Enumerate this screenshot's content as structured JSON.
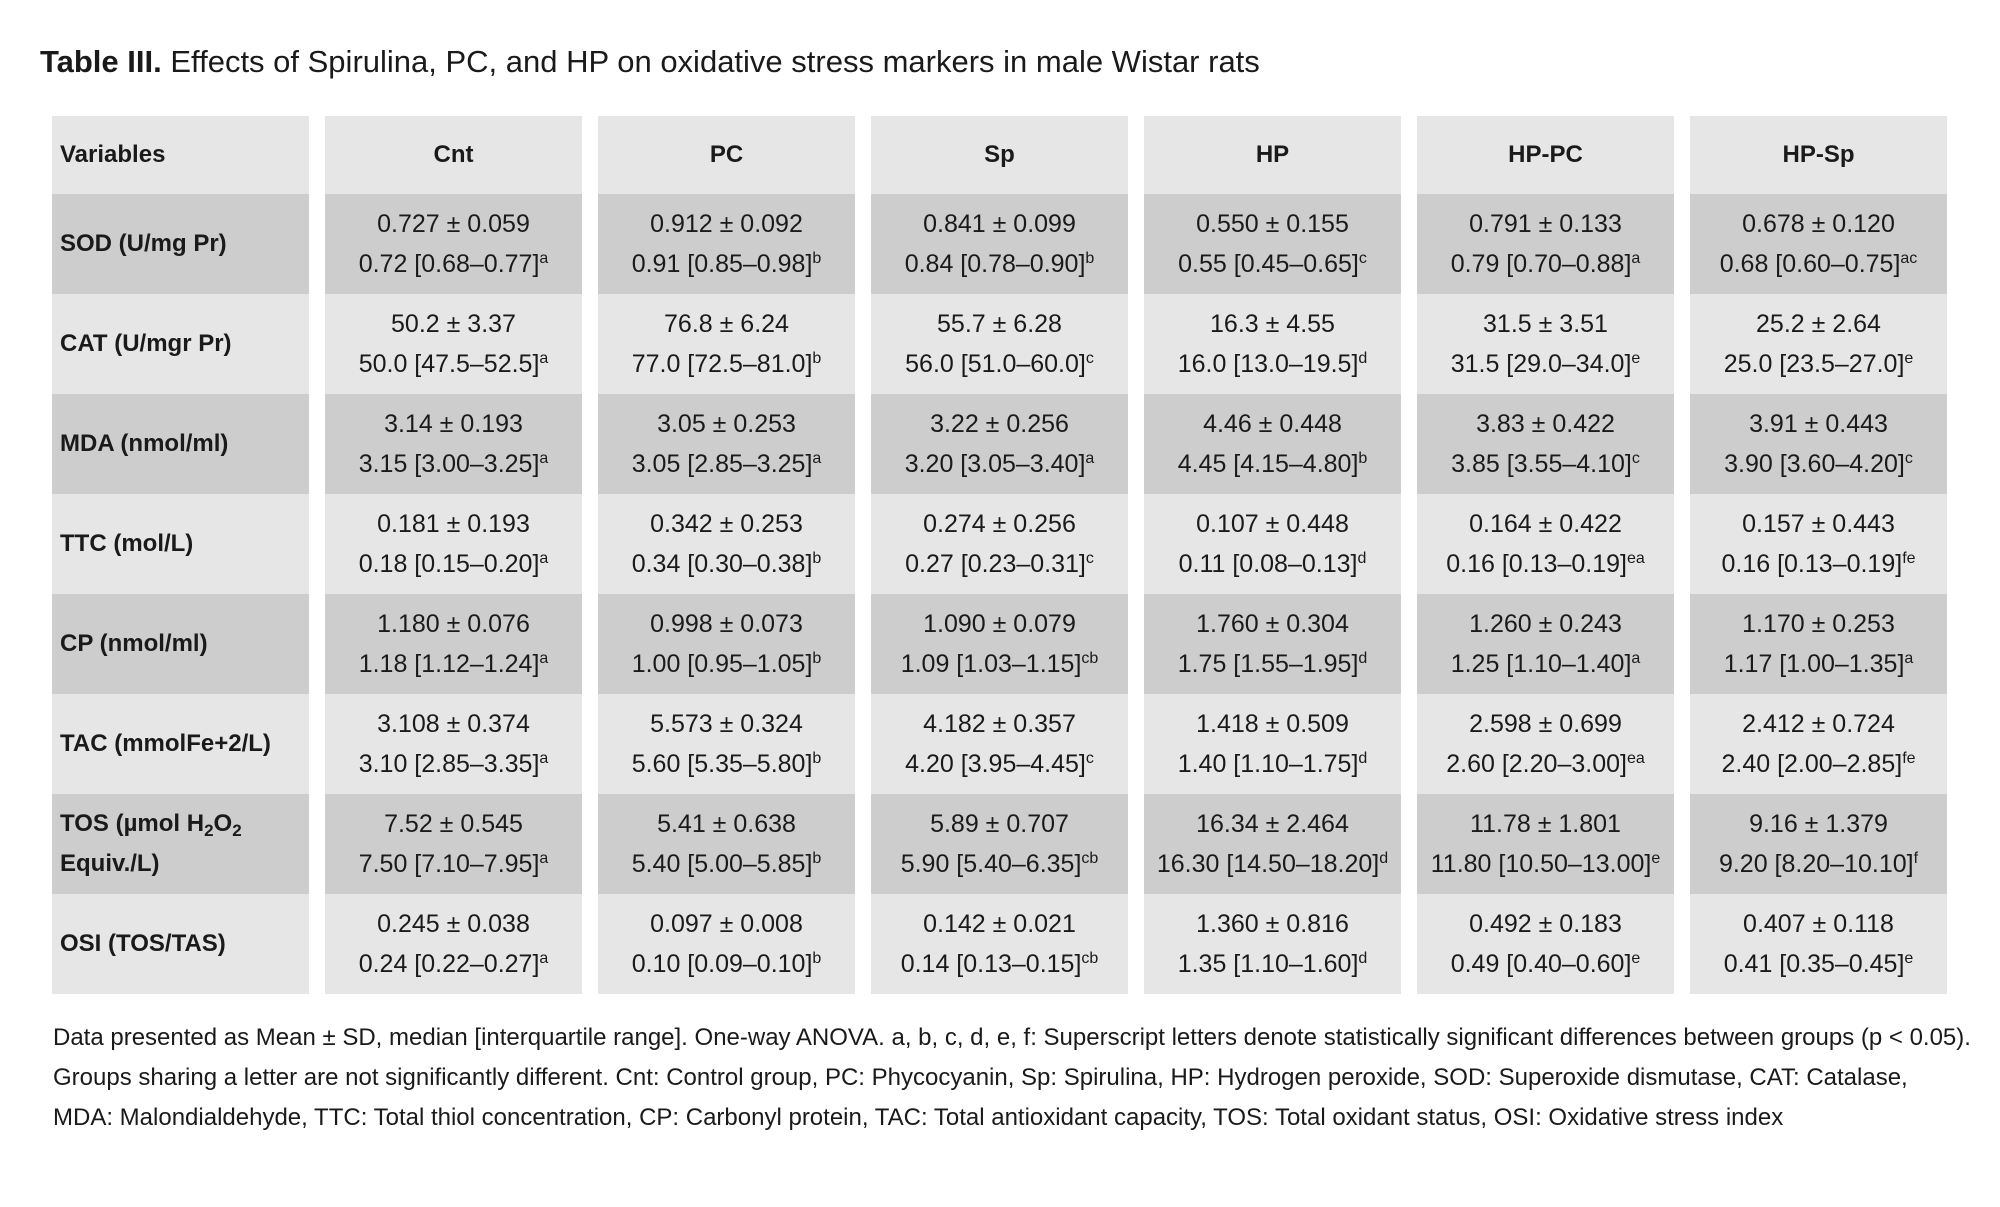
{
  "title": {
    "label": "Table III.",
    "text": "Effects of Spirulina, PC, and HP on oxidative stress markers in male Wistar rats"
  },
  "table": {
    "columns": [
      "Variables",
      "Cnt",
      "PC",
      "Sp",
      "HP",
      "HP-PC",
      "HP-Sp"
    ],
    "rows": [
      {
        "variable": {
          "line1": "SOD (U/mg Pr)"
        },
        "cells": [
          {
            "mean": "0.727 ± 0.059",
            "median": "0.72 [0.68–0.77]",
            "sup": "a"
          },
          {
            "mean": "0.912 ± 0.092",
            "median": "0.91 [0.85–0.98]",
            "sup": "b"
          },
          {
            "mean": "0.841 ± 0.099",
            "median": "0.84 [0.78–0.90]",
            "sup": "b"
          },
          {
            "mean": "0.550 ± 0.155",
            "median": "0.55 [0.45–0.65]",
            "sup": "c"
          },
          {
            "mean": "0.791 ± 0.133",
            "median": "0.79 [0.70–0.88]",
            "sup": "a"
          },
          {
            "mean": "0.678 ± 0.120",
            "median": "0.68 [0.60–0.75]",
            "sup": "ac"
          }
        ]
      },
      {
        "variable": {
          "line1": "CAT (U/mgr Pr)"
        },
        "cells": [
          {
            "mean": "50.2 ± 3.37",
            "median": "50.0 [47.5–52.5]",
            "sup": "a"
          },
          {
            "mean": "76.8 ± 6.24",
            "median": "77.0 [72.5–81.0]",
            "sup": "b"
          },
          {
            "mean": "55.7 ± 6.28",
            "median": "56.0 [51.0–60.0]",
            "sup": "c"
          },
          {
            "mean": "16.3 ± 4.55",
            "median": "16.0 [13.0–19.5]",
            "sup": "d"
          },
          {
            "mean": "31.5 ± 3.51",
            "median": "31.5 [29.0–34.0]",
            "sup": "e"
          },
          {
            "mean": "25.2 ± 2.64",
            "median": "25.0 [23.5–27.0]",
            "sup": "e"
          }
        ]
      },
      {
        "variable": {
          "line1": "MDA (nmol/ml)"
        },
        "cells": [
          {
            "mean": "3.14 ± 0.193",
            "median": "3.15 [3.00–3.25]",
            "sup": "a"
          },
          {
            "mean": "3.05 ± 0.253",
            "median": "3.05 [2.85–3.25]",
            "sup": "a"
          },
          {
            "mean": "3.22 ± 0.256",
            "median": "3.20 [3.05–3.40]",
            "sup": "a"
          },
          {
            "mean": "4.46 ± 0.448",
            "median": "4.45 [4.15–4.80]",
            "sup": "b"
          },
          {
            "mean": "3.83 ± 0.422",
            "median": "3.85 [3.55–4.10]",
            "sup": "c"
          },
          {
            "mean": "3.91 ± 0.443",
            "median": "3.90 [3.60–4.20]",
            "sup": "c"
          }
        ]
      },
      {
        "variable": {
          "line1": "TTC (mol/L)"
        },
        "cells": [
          {
            "mean": "0.181 ± 0.193",
            "median": "0.18 [0.15–0.20]",
            "sup": "a"
          },
          {
            "mean": "0.342 ± 0.253",
            "median": "0.34 [0.30–0.38]",
            "sup": "b"
          },
          {
            "mean": "0.274 ± 0.256",
            "median": "0.27 [0.23–0.31]",
            "sup": "c"
          },
          {
            "mean": "0.107 ± 0.448",
            "median": "0.11 [0.08–0.13]",
            "sup": "d"
          },
          {
            "mean": "0.164 ± 0.422",
            "median": "0.16 [0.13–0.19]",
            "sup": "ea"
          },
          {
            "mean": "0.157 ± 0.443",
            "median": "0.16 [0.13–0.19]",
            "sup": "fe"
          }
        ]
      },
      {
        "variable": {
          "line1": "CP (nmol/ml)"
        },
        "cells": [
          {
            "mean": "1.180 ± 0.076",
            "median": "1.18 [1.12–1.24]",
            "sup": "a"
          },
          {
            "mean": "0.998 ± 0.073",
            "median": "1.00 [0.95–1.05]",
            "sup": "b"
          },
          {
            "mean": "1.090 ± 0.079",
            "median": "1.09 [1.03–1.15]",
            "sup": "cb"
          },
          {
            "mean": "1.760 ± 0.304",
            "median": "1.75 [1.55–1.95]",
            "sup": "d"
          },
          {
            "mean": "1.260 ± 0.243",
            "median": "1.25 [1.10–1.40]",
            "sup": "a"
          },
          {
            "mean": "1.170 ± 0.253",
            "median": "1.17 [1.00–1.35]",
            "sup": "a"
          }
        ]
      },
      {
        "variable": {
          "line1": "TAC (mmolFe+2/L)"
        },
        "cells": [
          {
            "mean": "3.108 ± 0.374",
            "median": "3.10 [2.85–3.35]",
            "sup": "a"
          },
          {
            "mean": "5.573 ± 0.324",
            "median": "5.60 [5.35–5.80]",
            "sup": "b"
          },
          {
            "mean": "4.182 ± 0.357",
            "median": "4.20 [3.95–4.45]",
            "sup": "c"
          },
          {
            "mean": "1.418 ± 0.509",
            "median": "1.40 [1.10–1.75]",
            "sup": "d"
          },
          {
            "mean": "2.598 ± 0.699",
            "median": "2.60 [2.20–3.00]",
            "sup": "ea"
          },
          {
            "mean": "2.412 ± 0.724",
            "median": "2.40 [2.00–2.85]",
            "sup": "fe"
          }
        ]
      },
      {
        "variable": {
          "pre": "TOS (µmol H",
          "sub1": "2",
          "mid": "O",
          "sub2": "2",
          "line2": "Equiv./L)"
        },
        "cells": [
          {
            "mean": "7.52 ± 0.545",
            "median": "7.50 [7.10–7.95]",
            "sup": "a"
          },
          {
            "mean": "5.41 ± 0.638",
            "median": "5.40 [5.00–5.85]",
            "sup": "b"
          },
          {
            "mean": "5.89 ± 0.707",
            "median": "5.90 [5.40–6.35]",
            "sup": "cb"
          },
          {
            "mean": "16.34 ± 2.464",
            "median": "16.30 [14.50–18.20]",
            "sup": "d"
          },
          {
            "mean": "11.78 ± 1.801",
            "median": "11.80 [10.50–13.00]",
            "sup": "e"
          },
          {
            "mean": "9.16 ± 1.379",
            "median": "9.20 [8.20–10.10]",
            "sup": "f"
          }
        ]
      },
      {
        "variable": {
          "line1": "OSI (TOS/TAS)"
        },
        "cells": [
          {
            "mean": "0.245 ± 0.038",
            "median": "0.24 [0.22–0.27]",
            "sup": "a"
          },
          {
            "mean": "0.097 ± 0.008",
            "median": "0.10 [0.09–0.10]",
            "sup": "b"
          },
          {
            "mean": "0.142 ± 0.021",
            "median": "0.14 [0.13–0.15]",
            "sup": "cb"
          },
          {
            "mean": "1.360 ± 0.816",
            "median": "1.35 [1.10–1.60]",
            "sup": "d"
          },
          {
            "mean": "0.492 ± 0.183",
            "median": "0.49 [0.40–0.60]",
            "sup": "e"
          },
          {
            "mean": "0.407 ± 0.118",
            "median": "0.41 [0.35–0.45]",
            "sup": "e"
          }
        ]
      }
    ]
  },
  "note": "Data presented as Mean ± SD, median [interquartile range]. One-way ANOVA. a, b, c, d, e, f: Superscript letters denote statistically significant differences between groups (p < 0.05). Groups sharing a letter are not significantly different. Cnt: Control group, PC: Phycocyanin, Sp: Spirulina, HP: Hydrogen peroxide, SOD: Superoxide dismutase, CAT: Catalase, MDA: Malondialdehyde, TTC: Total thiol concentration, CP: Carbonyl protein, TAC: Total antioxidant capacity, TOS: Total oxidant status, OSI: Oxidative stress index"
}
